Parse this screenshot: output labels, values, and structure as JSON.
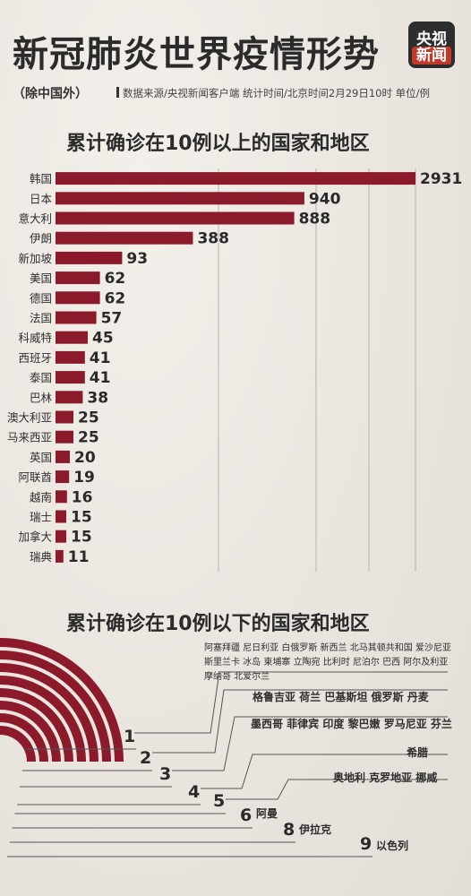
{
  "header": {
    "title": "新冠肺炎世界疫情形势",
    "logo_line1": "央视",
    "logo_line2": "新闻",
    "subtitle": "（除中国外）",
    "meta": "数据来源/央视新闻客户端    统计时间/北京时间2月29日10时    单位/例"
  },
  "colors": {
    "bar": "#8b1a2b",
    "accent": "#c0392b"
  },
  "chart_data": {
    "type": "bar",
    "orientation": "horizontal",
    "title": "累计确诊在10例以上的国家和地区",
    "categories": [
      "韩国",
      "日本",
      "意大利",
      "伊朗",
      "新加坡",
      "美国",
      "德国",
      "法国",
      "科威特",
      "西班牙",
      "泰国",
      "巴林",
      "澳大利亚",
      "马来西亚",
      "英国",
      "阿联酋",
      "越南",
      "瑞士",
      "加拿大",
      "瑞典"
    ],
    "values": [
      2931,
      940,
      888,
      388,
      93,
      62,
      62,
      57,
      45,
      41,
      41,
      38,
      25,
      25,
      20,
      19,
      16,
      15,
      15,
      11
    ],
    "x_ticks": [
      500,
      1000,
      2000,
      2500
    ],
    "grid": true
  },
  "low_chart": {
    "title": "累计确诊在10例以下的国家和地区",
    "groups": [
      {
        "count": "1",
        "countries": [
          "阿塞拜疆  尼日利亚  白俄罗斯  新西兰  北马其顿共和国  爱沙尼亚",
          "斯里兰卡  冰岛  柬埔寨  立陶宛  比利时  尼泊尔  巴西  阿尔及利亚",
          "摩纳哥  北爱尔兰"
        ]
      },
      {
        "count": "2",
        "countries": [
          "格鲁吉亚  荷兰  巴基斯坦  俄罗斯  丹麦"
        ]
      },
      {
        "count": "3",
        "countries": [
          "墨西哥  菲律宾  印度  黎巴嫩  罗马尼亚  芬兰"
        ]
      },
      {
        "count": "4",
        "countries": [
          "希腊"
        ]
      },
      {
        "count": "5",
        "countries": [
          "奥地利  克罗地亚  挪威"
        ]
      },
      {
        "count": "6",
        "countries": [
          "阿曼"
        ]
      },
      {
        "count": "8",
        "countries": [
          "伊拉克"
        ]
      },
      {
        "count": "9",
        "countries": [
          "以色列"
        ]
      }
    ]
  }
}
